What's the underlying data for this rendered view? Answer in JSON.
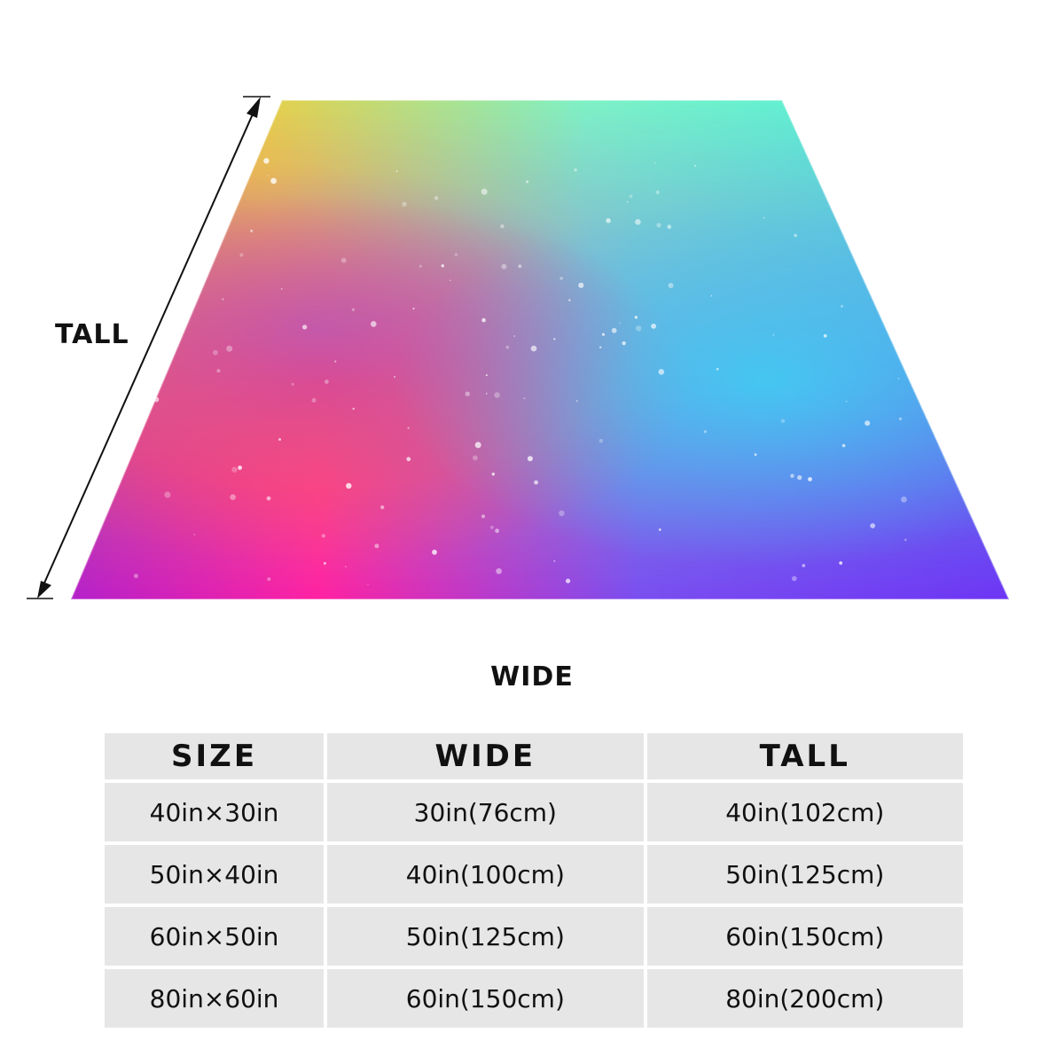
{
  "figure": {
    "tall_label": "TALL",
    "wide_label": "WIDE"
  },
  "table": {
    "headers": [
      "SIZE",
      "WIDE",
      "TALL"
    ],
    "rows": [
      [
        "40in×30in",
        "30in(76cm)",
        "40in(102cm)"
      ],
      [
        "50in×40in",
        "40in(100cm)",
        "50in(125cm)"
      ],
      [
        "60in×50in",
        "50in(125cm)",
        "60in(150cm)"
      ],
      [
        "80in×60in",
        "60in(150cm)",
        "80in(200cm)"
      ]
    ]
  },
  "colors": {
    "table_cell": "#e6e6e6",
    "gradient": [
      "#f7c531",
      "#ff4a5c",
      "#ff1fa8",
      "#a21be0",
      "#3ef2d9",
      "#3fb8f5",
      "#5a3cf2"
    ]
  }
}
